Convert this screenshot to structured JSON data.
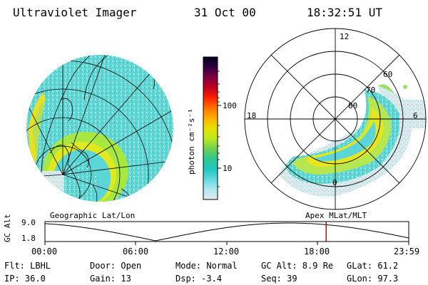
{
  "header": {
    "title": "Ultraviolet Imager",
    "date": "31 Oct 00",
    "time": "18:32:51 UT"
  },
  "colorbar": {
    "unit_label": "photon cm⁻²s⁻¹",
    "scale": "log",
    "ticks": [
      "100",
      "10"
    ],
    "colors": [
      "#000020",
      "#300040",
      "#800040",
      "#c00020",
      "#ff2000",
      "#ff7000",
      "#ffb000",
      "#e8e000",
      "#c0e820",
      "#70d050",
      "#30c890",
      "#20c8c0",
      "#60d8e0",
      "#b0e8f0",
      "#e0e8ec"
    ]
  },
  "left_panel": {
    "label": "Geographic Lat/Lon"
  },
  "right_panel": {
    "label": "Apex  MLat/MLT",
    "mlt_labels": [
      "12",
      "18",
      "6",
      "0"
    ],
    "mlat_labels": [
      "60",
      "70",
      "80"
    ]
  },
  "timeline": {
    "axis_label": "GC Alt",
    "y_ticks": [
      "9.0",
      "1.8"
    ],
    "x_ticks": [
      "00:00",
      "06:00",
      "12:00",
      "18:00",
      "23:59"
    ],
    "current_time_fraction": 0.773,
    "marker_color": "#e00000"
  },
  "info": {
    "flt": "Flt: LBHL",
    "ip": "IP: 36.0",
    "door": "Door: Open",
    "gain": "Gain: 13",
    "mode": "Mode: Normal",
    "dsp": "Dsp:   -3.4",
    "gc_alt": "GC Alt: 8.9 Re",
    "seq": "Seq: 39",
    "glat": "GLat:  61.2",
    "glon": "GLon:  97.3"
  }
}
